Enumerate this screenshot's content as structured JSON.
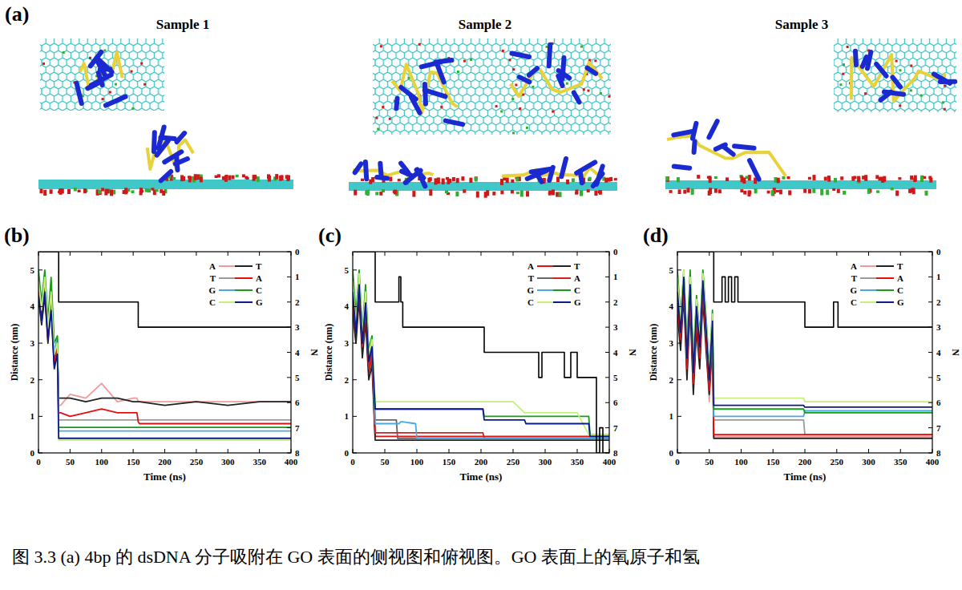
{
  "figure": {
    "panel_a": {
      "label": "(a)",
      "samples": [
        "Sample 1",
        "Sample 2",
        "Sample 3"
      ]
    },
    "caption": "图 3.3 (a) 4bp 的 dsDNA 分子吸附在 GO 表面的侧视图和俯视图。GO 表面上的氧原子和氢"
  },
  "chart_data": [
    {
      "type": "line",
      "title": "(b)",
      "x_label": "Time (ns)",
      "y_label": "Distance (nm)",
      "y2_label": "N",
      "legend": "upper right",
      "x": [
        0,
        5,
        10,
        15,
        20,
        25,
        30,
        32,
        35,
        50,
        75,
        100,
        125,
        150,
        156,
        158,
        160,
        200,
        250,
        300,
        350,
        400
      ],
      "xlim": [
        0,
        400
      ],
      "xticks": [
        0,
        50,
        100,
        150,
        200,
        250,
        300,
        350,
        400
      ],
      "ylim": [
        0,
        5.5
      ],
      "yticks": [
        0,
        1,
        2,
        3,
        4,
        5
      ],
      "y2lim": [
        8,
        0
      ],
      "y2ticks": [
        0,
        1,
        2,
        3,
        4,
        5,
        6,
        7,
        8
      ],
      "series": [
        {
          "name": "A",
          "color": "#f29a9a",
          "line_style": "solid",
          "values": [
            4.5,
            3.8,
            4.6,
            3.2,
            4.2,
            2.6,
            3.0,
            1.3,
            1.3,
            1.6,
            1.5,
            1.9,
            1.4,
            1.5,
            1.5,
            1.4,
            1.4,
            1.4,
            1.4,
            1.4,
            1.4,
            1.4
          ]
        },
        {
          "name": "T",
          "color": "#222222",
          "line_style": "solid",
          "values": [
            4.2,
            3.5,
            4.3,
            3.0,
            4.0,
            2.4,
            2.8,
            1.5,
            1.5,
            1.5,
            1.4,
            1.5,
            1.5,
            1.4,
            1.4,
            1.4,
            1.4,
            1.3,
            1.4,
            1.3,
            1.4,
            1.4
          ]
        },
        {
          "name": "T",
          "color": "#9a9a9a",
          "line_style": "solid",
          "values": [
            4.6,
            3.6,
            4.7,
            3.3,
            4.1,
            2.5,
            2.9,
            0.9,
            0.9,
            0.9,
            0.9,
            0.9,
            0.9,
            0.9,
            0.9,
            0.9,
            0.9,
            0.9,
            0.9,
            0.9,
            0.9,
            0.9
          ]
        },
        {
          "name": "A",
          "color": "#e01010",
          "line_style": "solid",
          "values": [
            4.4,
            3.7,
            4.5,
            3.1,
            4.1,
            2.5,
            2.9,
            1.1,
            1.1,
            1.0,
            1.1,
            1.2,
            1.1,
            1.1,
            1.1,
            0.85,
            0.8,
            0.8,
            0.8,
            0.8,
            0.8,
            0.8
          ]
        },
        {
          "name": "G",
          "color": "#4aa8e0",
          "line_style": "solid",
          "values": [
            4.8,
            4.0,
            4.9,
            3.4,
            4.5,
            2.8,
            3.1,
            0.6,
            0.6,
            0.6,
            0.6,
            0.6,
            0.6,
            0.6,
            0.6,
            0.6,
            0.6,
            0.6,
            0.6,
            0.6,
            0.6,
            0.6
          ]
        },
        {
          "name": "C",
          "color": "#1a9a1a",
          "line_style": "solid",
          "values": [
            5.0,
            4.1,
            5.0,
            3.6,
            4.8,
            3.0,
            3.2,
            0.7,
            0.7,
            0.7,
            0.7,
            0.7,
            0.7,
            0.7,
            0.7,
            0.7,
            0.7,
            0.7,
            0.7,
            0.7,
            0.7,
            0.7
          ]
        },
        {
          "name": "C",
          "color": "#c6f07a",
          "line_style": "solid",
          "values": [
            4.7,
            3.9,
            4.8,
            3.4,
            4.4,
            2.7,
            3.0,
            0.35,
            0.35,
            0.35,
            0.35,
            0.35,
            0.35,
            0.35,
            0.35,
            0.35,
            0.35,
            0.35,
            0.35,
            0.35,
            0.35,
            0.35
          ]
        },
        {
          "name": "G",
          "color": "#0a1a8a",
          "line_style": "solid",
          "values": [
            4.3,
            3.6,
            4.4,
            3.1,
            3.9,
            2.3,
            2.7,
            0.4,
            0.4,
            0.4,
            0.4,
            0.4,
            0.4,
            0.4,
            0.4,
            0.4,
            0.4,
            0.4,
            0.4,
            0.4,
            0.4,
            0.4
          ]
        },
        {
          "color": "#000000",
          "axis": "y2",
          "line_style": "step",
          "values": [
            0,
            0,
            0,
            0,
            0,
            0,
            0,
            2,
            2,
            2,
            2,
            2,
            2,
            2,
            2,
            3,
            3,
            3,
            3,
            3,
            3,
            3
          ]
        }
      ]
    },
    {
      "type": "line",
      "title": "(c)",
      "x_label": "Time (ns)",
      "y_label": "Distance (nm)",
      "y2_label": "N",
      "legend": "upper right",
      "x": [
        0,
        5,
        10,
        15,
        20,
        25,
        30,
        35,
        40,
        68,
        70,
        72,
        75,
        78,
        98,
        100,
        150,
        203,
        205,
        250,
        268,
        270,
        290,
        295,
        300,
        330,
        340,
        350,
        368,
        370,
        380,
        385,
        390,
        400
      ],
      "xlim": [
        0,
        400
      ],
      "xticks": [
        0,
        50,
        100,
        150,
        200,
        250,
        300,
        350,
        400
      ],
      "ylim": [
        0,
        5.5
      ],
      "yticks": [
        0,
        1,
        2,
        3,
        4,
        5
      ],
      "y2lim": [
        8,
        0
      ],
      "y2ticks": [
        0,
        1,
        2,
        3,
        4,
        5,
        6,
        7,
        8
      ],
      "series": [
        {
          "name": "A",
          "color": "#e01010",
          "line_style": "solid",
          "values": [
            4.0,
            3.2,
            4.4,
            2.8,
            3.8,
            2.2,
            2.6,
            0.45,
            0.45,
            0.45,
            0.45,
            0.45,
            0.45,
            0.45,
            0.45,
            0.45,
            0.45,
            0.45,
            0.45,
            0.45,
            0.45,
            0.45,
            0.45,
            0.45,
            0.45,
            0.45,
            0.45,
            0.45,
            0.45,
            0.45,
            0.45,
            0.45,
            0.45,
            0.45
          ]
        },
        {
          "name": "T",
          "color": "#222222",
          "line_style": "solid",
          "values": [
            3.8,
            3.0,
            4.2,
            2.6,
            3.6,
            2.0,
            2.4,
            0.35,
            0.35,
            0.35,
            0.35,
            0.35,
            0.35,
            0.35,
            0.35,
            0.35,
            0.35,
            0.35,
            0.35,
            0.35,
            0.35,
            0.35,
            0.35,
            0.35,
            0.35,
            0.35,
            0.35,
            0.35,
            0.35,
            0.35,
            0.35,
            0.35,
            0.35,
            0.35
          ]
        },
        {
          "name": "T",
          "color": "#666666",
          "line_style": "solid",
          "values": [
            4.2,
            3.4,
            4.6,
            3.0,
            4.0,
            2.4,
            2.8,
            0.9,
            0.9,
            0.9,
            0.4,
            0.4,
            0.4,
            0.4,
            0.4,
            0.4,
            0.4,
            0.4,
            0.4,
            0.4,
            0.4,
            0.4,
            0.4,
            0.4,
            0.4,
            0.4,
            0.4,
            0.4,
            0.4,
            0.4,
            0.4,
            0.4,
            0.4,
            0.4
          ]
        },
        {
          "name": "A",
          "color": "#d02020",
          "line_style": "solid",
          "values": [
            4.1,
            3.3,
            4.5,
            2.9,
            3.9,
            2.3,
            2.7,
            0.55,
            0.55,
            0.55,
            0.55,
            0.55,
            0.55,
            0.55,
            0.55,
            0.55,
            0.55,
            0.55,
            0.4,
            0.4,
            0.4,
            0.4,
            0.4,
            0.4,
            0.4,
            0.4,
            0.4,
            0.4,
            0.4,
            0.4,
            0.4,
            0.4,
            0.4,
            0.4
          ]
        },
        {
          "name": "G",
          "color": "#4aa8e0",
          "line_style": "solid",
          "values": [
            4.6,
            3.6,
            4.8,
            3.1,
            4.3,
            2.6,
            3.0,
            0.8,
            0.8,
            0.8,
            0.8,
            0.8,
            0.85,
            0.85,
            0.8,
            0.4,
            0.4,
            0.4,
            0.4,
            0.4,
            0.4,
            0.4,
            0.4,
            0.4,
            0.4,
            0.4,
            0.4,
            0.4,
            0.4,
            0.4,
            0.4,
            0.4,
            0.4,
            0.4
          ]
        },
        {
          "name": "C",
          "color": "#1a9a1a",
          "line_style": "solid",
          "values": [
            5.0,
            3.8,
            5.0,
            3.3,
            4.6,
            2.8,
            3.2,
            1.2,
            1.2,
            1.2,
            1.2,
            1.2,
            1.2,
            1.2,
            1.2,
            1.2,
            1.2,
            1.2,
            1.0,
            1.0,
            1.0,
            1.0,
            1.0,
            1.0,
            1.0,
            1.0,
            1.0,
            1.0,
            1.0,
            0.5,
            0.5,
            0.5,
            0.5,
            0.5
          ]
        },
        {
          "name": "C",
          "color": "#c6f07a",
          "line_style": "solid",
          "values": [
            4.7,
            3.5,
            4.9,
            3.2,
            4.4,
            2.7,
            3.1,
            1.4,
            1.4,
            1.4,
            1.4,
            1.4,
            1.4,
            1.4,
            1.4,
            1.4,
            1.4,
            1.4,
            1.4,
            1.4,
            1.1,
            1.1,
            1.1,
            1.1,
            1.1,
            1.1,
            1.1,
            1.1,
            0.5,
            0.5,
            0.5,
            0.5,
            0.5,
            0.5
          ]
        },
        {
          "name": "G",
          "color": "#0a1a8a",
          "line_style": "solid",
          "values": [
            4.4,
            3.3,
            4.6,
            3.0,
            4.1,
            2.5,
            2.9,
            1.2,
            1.2,
            1.2,
            1.2,
            1.2,
            1.2,
            1.2,
            1.2,
            1.2,
            1.2,
            1.2,
            0.9,
            0.9,
            0.9,
            0.8,
            0.8,
            0.8,
            0.8,
            0.8,
            0.8,
            0.8,
            0.8,
            0.45,
            0.45,
            0.45,
            0.45,
            0.45
          ]
        },
        {
          "color": "#000000",
          "axis": "y2",
          "line_style": "step",
          "values": [
            0,
            0,
            0,
            0,
            0,
            0,
            0,
            2,
            2,
            2,
            2,
            1,
            2,
            3,
            3,
            3,
            3,
            3,
            4,
            4,
            4,
            4,
            5,
            4,
            4,
            5,
            4,
            5,
            5,
            5,
            8,
            7,
            8,
            8
          ]
        }
      ]
    },
    {
      "type": "line",
      "title": "(d)",
      "x_label": "Time (ns)",
      "y_label": "Distance (nm)",
      "y2_label": "N",
      "legend": "upper right",
      "x": [
        0,
        5,
        10,
        15,
        20,
        25,
        30,
        35,
        40,
        45,
        50,
        55,
        57,
        60,
        70,
        75,
        80,
        85,
        90,
        95,
        100,
        198,
        200,
        245,
        252,
        400
      ],
      "xlim": [
        0,
        400
      ],
      "xticks": [
        0,
        50,
        100,
        150,
        200,
        250,
        300,
        350,
        400
      ],
      "ylim": [
        0,
        5.5
      ],
      "yticks": [
        0,
        1,
        2,
        3,
        4,
        5
      ],
      "y2lim": [
        8,
        0
      ],
      "y2ticks": [
        0,
        1,
        2,
        3,
        4,
        5,
        6,
        7,
        8
      ],
      "series": [
        {
          "name": "A",
          "color": "#f29a9a",
          "line_style": "solid",
          "values": [
            4.0,
            3.0,
            4.5,
            2.2,
            4.2,
            1.8,
            3.6,
            2.5,
            4.4,
            3.0,
            1.4,
            3.2,
            0.45,
            0.45,
            0.45,
            0.45,
            0.45,
            0.45,
            0.45,
            0.45,
            0.45,
            0.45,
            0.45,
            0.45,
            0.45,
            0.45
          ]
        },
        {
          "name": "T",
          "color": "#222222",
          "line_style": "solid",
          "values": [
            3.8,
            2.8,
            4.3,
            2.0,
            4.0,
            1.6,
            3.4,
            2.3,
            4.2,
            2.8,
            1.6,
            3.0,
            0.4,
            0.4,
            0.4,
            0.4,
            0.4,
            0.4,
            0.4,
            0.4,
            0.4,
            0.4,
            0.4,
            0.4,
            0.4,
            0.4
          ]
        },
        {
          "name": "T",
          "color": "#9a9a9a",
          "line_style": "solid",
          "values": [
            4.2,
            3.2,
            4.7,
            2.4,
            4.4,
            2.0,
            3.8,
            2.7,
            4.6,
            3.2,
            1.8,
            3.4,
            0.9,
            0.9,
            0.9,
            0.9,
            0.9,
            0.9,
            0.9,
            0.9,
            0.9,
            0.9,
            0.5,
            0.5,
            0.5,
            0.5
          ]
        },
        {
          "name": "A",
          "color": "#e01010",
          "line_style": "solid",
          "values": [
            4.1,
            3.1,
            4.6,
            2.3,
            4.3,
            1.9,
            3.7,
            2.6,
            4.5,
            3.1,
            1.7,
            3.3,
            0.5,
            0.5,
            0.5,
            0.5,
            0.5,
            0.5,
            0.5,
            0.5,
            0.5,
            0.5,
            0.5,
            0.5,
            0.5,
            0.5
          ]
        },
        {
          "name": "G",
          "color": "#4aa8e0",
          "line_style": "solid",
          "values": [
            4.6,
            3.5,
            4.9,
            2.7,
            4.7,
            2.3,
            4.1,
            3.0,
            4.8,
            3.5,
            2.1,
            3.7,
            1.0,
            1.0,
            1.0,
            1.0,
            1.0,
            1.0,
            1.0,
            1.0,
            1.0,
            1.0,
            1.15,
            1.15,
            1.15,
            1.15
          ]
        },
        {
          "name": "C",
          "color": "#1a9a1a",
          "line_style": "solid",
          "values": [
            5.0,
            3.7,
            5.0,
            2.9,
            5.0,
            2.5,
            4.3,
            3.2,
            5.0,
            3.7,
            2.3,
            3.9,
            1.2,
            1.2,
            1.2,
            1.2,
            1.2,
            1.2,
            1.2,
            1.2,
            1.2,
            1.2,
            1.1,
            1.1,
            1.1,
            1.1
          ]
        },
        {
          "name": "C",
          "color": "#c6f07a",
          "line_style": "solid",
          "values": [
            4.8,
            3.6,
            5.0,
            2.8,
            4.8,
            2.4,
            4.2,
            3.1,
            4.9,
            3.6,
            2.2,
            3.8,
            1.5,
            1.5,
            1.5,
            1.5,
            1.5,
            1.5,
            1.5,
            1.5,
            1.5,
            1.5,
            1.4,
            1.4,
            1.4,
            1.4
          ]
        },
        {
          "name": "G",
          "color": "#0a1a8a",
          "line_style": "solid",
          "values": [
            4.4,
            3.3,
            4.8,
            2.6,
            4.6,
            2.2,
            4.0,
            2.9,
            4.7,
            3.4,
            2.0,
            3.6,
            1.3,
            1.3,
            1.3,
            1.3,
            1.3,
            1.3,
            1.3,
            1.3,
            1.3,
            1.3,
            1.25,
            1.25,
            1.25,
            1.25
          ]
        },
        {
          "color": "#000000",
          "axis": "y2",
          "line_style": "step",
          "values": [
            0,
            0,
            0,
            0,
            0,
            0,
            0,
            0,
            0,
            0,
            0,
            0,
            2,
            2,
            1,
            2,
            1,
            2,
            1,
            2,
            2,
            2,
            3,
            2,
            3,
            3
          ]
        }
      ]
    }
  ]
}
